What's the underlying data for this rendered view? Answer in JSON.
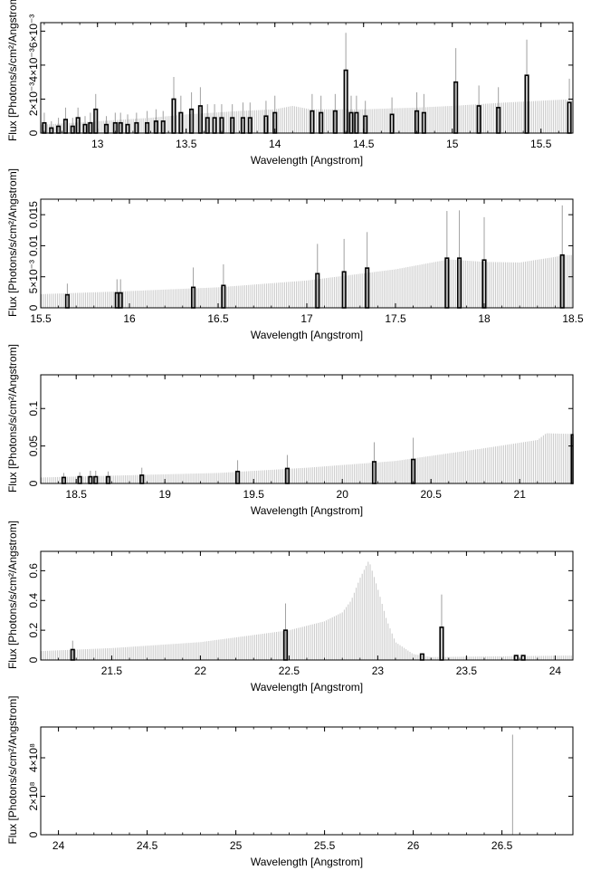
{
  "colors": {
    "data": "#000000",
    "model": "#c8c8c8",
    "axis": "#000000",
    "background": "#ffffff"
  },
  "chart_data": [
    {
      "type": "bar",
      "xlabel": "Wavelength [Angstrom]",
      "ylabel": "Flux [Photons/s/cm²/Angstrom]",
      "xlim": [
        12.68,
        15.68
      ],
      "ylim": [
        0,
        0.0065
      ],
      "xticks": [
        "13",
        "13.5",
        "14",
        "14.5",
        "15",
        "15.5"
      ],
      "yticks": [
        "0",
        "2×10⁻³",
        "4×10⁻³",
        "6×10⁻³"
      ],
      "model": {
        "x": [
          12.7,
          13.0,
          13.3,
          13.5,
          13.8,
          14.0,
          14.1,
          14.2,
          14.5,
          14.8,
          15.0,
          15.3,
          15.68
        ],
        "y": [
          0.0005,
          0.0007,
          0.0009,
          0.0011,
          0.0013,
          0.0014,
          0.0016,
          0.0014,
          0.0014,
          0.0015,
          0.0016,
          0.0018,
          0.002
        ]
      },
      "data": [
        {
          "x": 12.7,
          "y": 0.0006,
          "err": 0.0006
        },
        {
          "x": 12.74,
          "y": 0.0003,
          "err": 0.0004
        },
        {
          "x": 12.78,
          "y": 0.0004,
          "err": 0.0005
        },
        {
          "x": 12.82,
          "y": 0.0008,
          "err": 0.0007
        },
        {
          "x": 12.86,
          "y": 0.0004,
          "err": 0.0005
        },
        {
          "x": 12.89,
          "y": 0.0009,
          "err": 0.0006
        },
        {
          "x": 12.93,
          "y": 0.0005,
          "err": 0.0005
        },
        {
          "x": 12.96,
          "y": 0.0006,
          "err": 0.0006
        },
        {
          "x": 12.99,
          "y": 0.0014,
          "err": 0.0009
        },
        {
          "x": 13.05,
          "y": 0.0005,
          "err": 0.0005
        },
        {
          "x": 13.1,
          "y": 0.0006,
          "err": 0.0006
        },
        {
          "x": 13.13,
          "y": 0.0006,
          "err": 0.0006
        },
        {
          "x": 13.17,
          "y": 0.0005,
          "err": 0.0006
        },
        {
          "x": 13.22,
          "y": 0.0006,
          "err": 0.0006
        },
        {
          "x": 13.28,
          "y": 0.0006,
          "err": 0.0007
        },
        {
          "x": 13.33,
          "y": 0.0007,
          "err": 0.0007
        },
        {
          "x": 13.37,
          "y": 0.0007,
          "err": 0.0006
        },
        {
          "x": 13.43,
          "y": 0.002,
          "err": 0.0013
        },
        {
          "x": 13.47,
          "y": 0.0012,
          "err": 0.001
        },
        {
          "x": 13.53,
          "y": 0.0014,
          "err": 0.001
        },
        {
          "x": 13.58,
          "y": 0.0016,
          "err": 0.0011
        },
        {
          "x": 13.62,
          "y": 0.0009,
          "err": 0.0008
        },
        {
          "x": 13.66,
          "y": 0.0009,
          "err": 0.0008
        },
        {
          "x": 13.7,
          "y": 0.0009,
          "err": 0.0008
        },
        {
          "x": 13.76,
          "y": 0.0009,
          "err": 0.0008
        },
        {
          "x": 13.82,
          "y": 0.0009,
          "err": 0.0009
        },
        {
          "x": 13.86,
          "y": 0.0009,
          "err": 0.0009
        },
        {
          "x": 13.95,
          "y": 0.001,
          "err": 0.0009
        },
        {
          "x": 14.0,
          "y": 0.0012,
          "err": 0.001
        },
        {
          "x": 14.21,
          "y": 0.0013,
          "err": 0.001
        },
        {
          "x": 14.26,
          "y": 0.0012,
          "err": 0.001
        },
        {
          "x": 14.34,
          "y": 0.0013,
          "err": 0.001
        },
        {
          "x": 14.4,
          "y": 0.0037,
          "err": 0.0022
        },
        {
          "x": 14.43,
          "y": 0.0012,
          "err": 0.001
        },
        {
          "x": 14.46,
          "y": 0.0012,
          "err": 0.001
        },
        {
          "x": 14.51,
          "y": 0.001,
          "err": 0.0009
        },
        {
          "x": 14.66,
          "y": 0.0011,
          "err": 0.001
        },
        {
          "x": 14.8,
          "y": 0.0013,
          "err": 0.0011
        },
        {
          "x": 14.84,
          "y": 0.0012,
          "err": 0.0011
        },
        {
          "x": 15.02,
          "y": 0.003,
          "err": 0.002
        },
        {
          "x": 15.15,
          "y": 0.0016,
          "err": 0.0012
        },
        {
          "x": 15.26,
          "y": 0.0015,
          "err": 0.0012
        },
        {
          "x": 15.42,
          "y": 0.0034,
          "err": 0.0021
        },
        {
          "x": 15.66,
          "y": 0.0018,
          "err": 0.0014
        }
      ]
    },
    {
      "type": "bar",
      "xlabel": "Wavelength [Angstrom]",
      "ylabel": "Flux [Photons/s/cm²/Angstrom]",
      "xlim": [
        15.5,
        18.5
      ],
      "ylim": [
        0,
        0.0175
      ],
      "xticks": [
        "15.5",
        "16",
        "16.5",
        "17",
        "17.5",
        "18",
        "18.5"
      ],
      "yticks": [
        "0",
        "5×10⁻³",
        "0.01",
        "0.015"
      ],
      "model": {
        "x": [
          15.5,
          16.0,
          16.5,
          17.0,
          17.5,
          17.8,
          18.0,
          18.2,
          18.4,
          18.45
        ],
        "y": [
          0.0022,
          0.0027,
          0.0033,
          0.0044,
          0.0062,
          0.0078,
          0.0074,
          0.0073,
          0.0082,
          0.0085
        ]
      },
      "data": [
        {
          "x": 15.65,
          "y": 0.0021,
          "err": 0.0018
        },
        {
          "x": 15.93,
          "y": 0.0024,
          "err": 0.0022
        },
        {
          "x": 15.95,
          "y": 0.0024,
          "err": 0.0022
        },
        {
          "x": 16.36,
          "y": 0.0033,
          "err": 0.0032
        },
        {
          "x": 16.53,
          "y": 0.0036,
          "err": 0.0034
        },
        {
          "x": 17.06,
          "y": 0.0055,
          "err": 0.0048
        },
        {
          "x": 17.21,
          "y": 0.0058,
          "err": 0.0053
        },
        {
          "x": 17.34,
          "y": 0.0064,
          "err": 0.0058
        },
        {
          "x": 17.79,
          "y": 0.008,
          "err": 0.0076
        },
        {
          "x": 17.86,
          "y": 0.008,
          "err": 0.0077
        },
        {
          "x": 18.0,
          "y": 0.0077,
          "err": 0.0069
        },
        {
          "x": 18.44,
          "y": 0.0085,
          "err": 0.008
        }
      ]
    },
    {
      "type": "bar",
      "xlabel": "Wavelength [Angstrom]",
      "ylabel": "Flux [Photons/s/cm²/Angstrom]",
      "xlim": [
        18.3,
        21.3
      ],
      "ylim": [
        0,
        0.145
      ],
      "xticks": [
        "18.5",
        "19",
        "19.5",
        "20",
        "20.5",
        "21"
      ],
      "yticks": [
        "0",
        "0.05",
        "0.1"
      ],
      "model": {
        "x": [
          18.3,
          18.8,
          19.3,
          19.8,
          20.3,
          20.8,
          21.1,
          21.15,
          21.3
        ],
        "y": [
          0.008,
          0.011,
          0.014,
          0.021,
          0.03,
          0.047,
          0.058,
          0.067,
          0.066
        ]
      },
      "data": [
        {
          "x": 18.43,
          "y": 0.008,
          "err": 0.006
        },
        {
          "x": 18.52,
          "y": 0.009,
          "err": 0.006
        },
        {
          "x": 18.58,
          "y": 0.009,
          "err": 0.008
        },
        {
          "x": 18.61,
          "y": 0.009,
          "err": 0.008
        },
        {
          "x": 18.68,
          "y": 0.009,
          "err": 0.007
        },
        {
          "x": 18.87,
          "y": 0.011,
          "err": 0.01
        },
        {
          "x": 19.41,
          "y": 0.016,
          "err": 0.015
        },
        {
          "x": 19.69,
          "y": 0.02,
          "err": 0.018
        },
        {
          "x": 20.18,
          "y": 0.029,
          "err": 0.026
        },
        {
          "x": 20.4,
          "y": 0.032,
          "err": 0.029
        },
        {
          "x": 21.3,
          "y": 0.065,
          "err": 0.0
        }
      ]
    },
    {
      "type": "bar",
      "xlabel": "Wavelength [Angstrom]",
      "ylabel": "Flux [Photons/s/cm²/Angstrom]",
      "xlim": [
        21.1,
        24.1
      ],
      "ylim": [
        0,
        0.73
      ],
      "xticks": [
        "21.5",
        "22",
        "22.5",
        "23",
        "23.5",
        "24"
      ],
      "yticks": [
        "0",
        "0.2",
        "0.4",
        "0.6"
      ],
      "model": {
        "x": [
          21.1,
          21.5,
          22.0,
          22.5,
          22.6,
          22.7,
          22.8,
          22.85,
          22.9,
          22.95,
          23.0,
          23.05,
          23.1,
          23.2,
          23.3,
          24.1
        ],
        "y": [
          0.06,
          0.08,
          0.12,
          0.2,
          0.23,
          0.26,
          0.32,
          0.4,
          0.55,
          0.67,
          0.48,
          0.27,
          0.12,
          0.04,
          0.02,
          0.03
        ]
      },
      "data": [
        {
          "x": 21.28,
          "y": 0.07,
          "err": 0.06
        },
        {
          "x": 22.48,
          "y": 0.2,
          "err": 0.18
        },
        {
          "x": 23.25,
          "y": 0.04,
          "err": 0.0
        },
        {
          "x": 23.36,
          "y": 0.22,
          "err": 0.22
        },
        {
          "x": 23.78,
          "y": 0.03,
          "err": 0.0
        },
        {
          "x": 23.82,
          "y": 0.03,
          "err": 0.0
        }
      ]
    },
    {
      "type": "bar",
      "xlabel": "Wavelength [Angstrom]",
      "ylabel": "Flux [Photons/s/cm²/Angstrom]",
      "xlim": [
        23.9,
        26.9
      ],
      "ylim": [
        0,
        560000000.0
      ],
      "xticks": [
        "24",
        "24.5",
        "25",
        "25.5",
        "26",
        "26.5"
      ],
      "yticks": [
        "0",
        "2×10⁸",
        "4×10⁸"
      ],
      "model": {
        "x": [
          23.9,
          26.9
        ],
        "y": [
          0,
          0
        ]
      },
      "data": [
        {
          "x": 26.56,
          "y": 0,
          "err": 520000000.0
        }
      ]
    }
  ]
}
